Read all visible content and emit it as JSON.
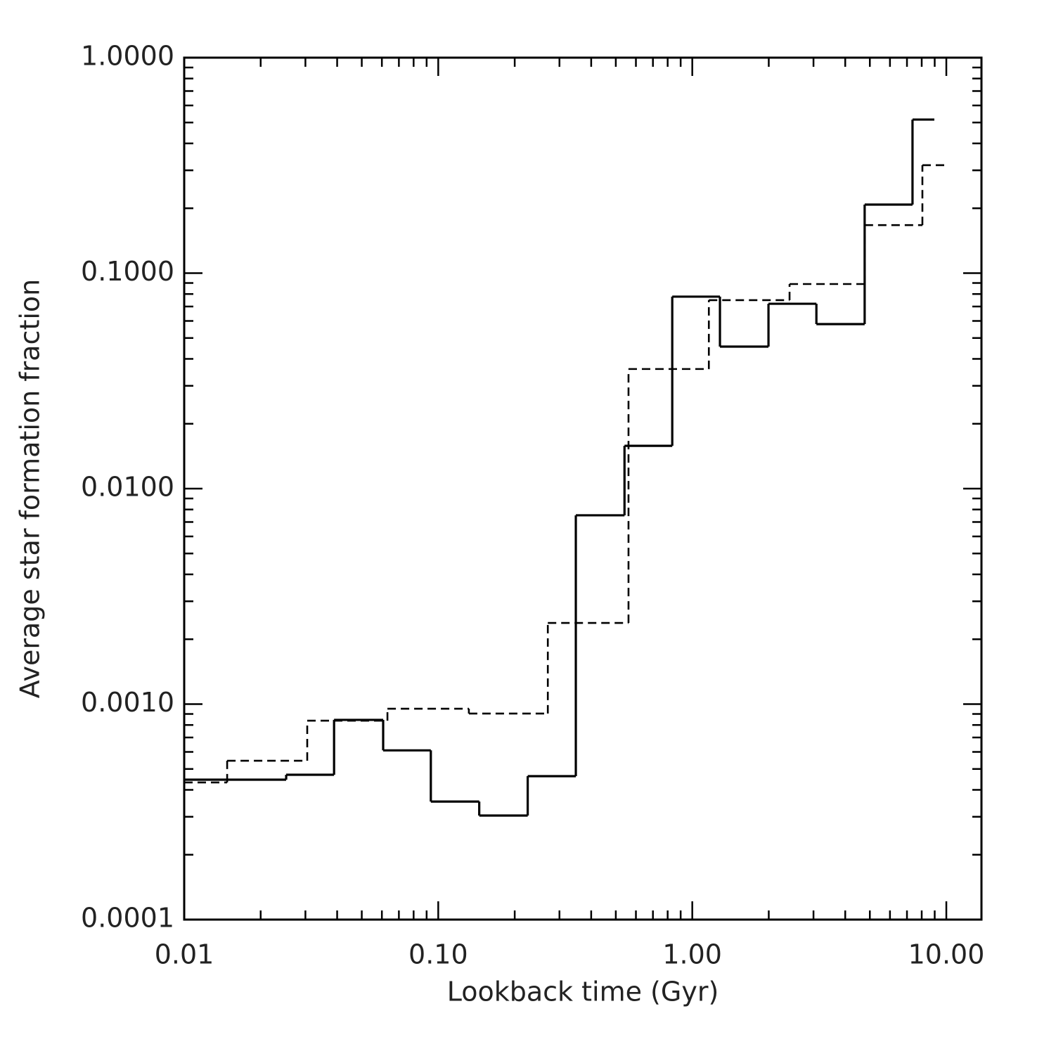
{
  "chart_data": {
    "type": "step",
    "xlabel": "Lookback time (Gyr)",
    "ylabel": "Average star formation fraction",
    "xscale": "log",
    "yscale": "log",
    "xlim": [
      0.01,
      13.75
    ],
    "ylim": [
      0.0001,
      1
    ],
    "xticks": [
      {
        "value": 0.01,
        "label": "0.01"
      },
      {
        "value": 0.1,
        "label": "0.10"
      },
      {
        "value": 1,
        "label": "1.00"
      },
      {
        "value": 10,
        "label": "10.00"
      }
    ],
    "yticks": [
      {
        "value": 0.0001,
        "label": "0.0001"
      },
      {
        "value": 0.001,
        "label": "0.0010"
      },
      {
        "value": 0.01,
        "label": "0.0100"
      },
      {
        "value": 0.1,
        "label": "0.1000"
      },
      {
        "value": 1,
        "label": "1.0000"
      }
    ],
    "series": [
      {
        "color": "#000000",
        "linestyle": "solid",
        "bins": [
          0.01,
          0.0252,
          0.0389,
          0.0607,
          0.0935,
          0.145,
          0.225,
          0.348,
          0.541,
          0.834,
          1.285,
          1.995,
          3.08,
          4.77,
          7.36,
          8.97
        ],
        "values": [
          0.000446,
          0.00047,
          0.000845,
          0.00061,
          0.000353,
          0.000304,
          0.000463,
          0.00752,
          0.0158,
          0.0778,
          0.0456,
          0.0721,
          0.058,
          0.208,
          0.516
        ]
      },
      {
        "color": "#000000",
        "linestyle": "dashed",
        "bins": [
          0.01,
          0.01476,
          0.0305,
          0.0631,
          0.132,
          0.27,
          0.561,
          1.162,
          2.415,
          4.77,
          8.05,
          9.93
        ],
        "values": [
          0.000433,
          0.000546,
          0.000838,
          0.000952,
          0.000904,
          0.00238,
          0.0359,
          0.0749,
          0.089,
          0.167,
          0.317
        ]
      }
    ]
  }
}
